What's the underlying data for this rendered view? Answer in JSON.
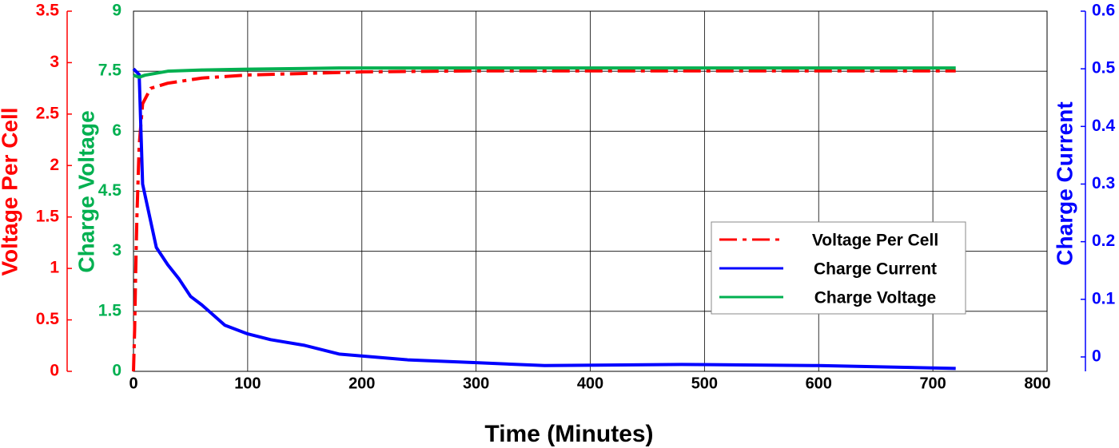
{
  "chart_data": {
    "type": "line",
    "xlabel": "Time (Minutes)",
    "ylabel": "Charge Voltage",
    "y2label": "Charge Current",
    "y3label": "Voltage Per Cell",
    "xlim": [
      0,
      800
    ],
    "xticks": [
      0,
      100,
      200,
      300,
      400,
      500,
      600,
      700,
      800
    ],
    "ylim": [
      0,
      9
    ],
    "yticks": [
      0,
      1.5,
      3,
      4.5,
      6,
      7.5,
      9
    ],
    "y2lim": [
      -0.025,
      0.6
    ],
    "y2ticks": [
      0,
      0.1,
      0.2,
      0.3,
      0.4,
      0.5,
      0.6
    ],
    "y3lim": [
      0,
      3.5
    ],
    "y3ticks": [
      0,
      0.5,
      1,
      1.5,
      2,
      2.5,
      3,
      3.5
    ],
    "grid": true,
    "series": [
      {
        "name": "Voltage Per Cell",
        "color": "#ff0000",
        "axis": "y3",
        "dashed": true,
        "x": [
          0,
          1,
          2,
          3,
          5,
          8,
          15,
          30,
          60,
          100,
          200,
          300,
          400,
          500,
          600,
          720
        ],
        "values": [
          0,
          0.4,
          1,
          1.5,
          2.2,
          2.6,
          2.75,
          2.8,
          2.85,
          2.88,
          2.91,
          2.92,
          2.92,
          2.92,
          2.92,
          2.92
        ]
      },
      {
        "name": "Charge Current",
        "color": "#0000ff",
        "axis": "y2",
        "x": [
          0,
          5,
          8,
          20,
          30,
          40,
          50,
          60,
          80,
          100,
          120,
          150,
          180,
          240,
          300,
          360,
          480,
          600,
          720
        ],
        "values": [
          0.5,
          0.49,
          0.3,
          0.19,
          0.16,
          0.135,
          0.105,
          0.09,
          0.055,
          0.04,
          0.03,
          0.02,
          0.005,
          -0.005,
          -0.01,
          -0.015,
          -0.013,
          -0.015,
          -0.02
        ]
      },
      {
        "name": "Charge Voltage",
        "color": "#00b050",
        "axis": "y",
        "x": [
          0,
          5,
          10,
          20,
          30,
          60,
          100,
          180,
          300,
          450,
          600,
          720
        ],
        "values": [
          7.4,
          7.35,
          7.4,
          7.45,
          7.5,
          7.53,
          7.55,
          7.58,
          7.58,
          7.58,
          7.58,
          7.58
        ]
      }
    ]
  }
}
